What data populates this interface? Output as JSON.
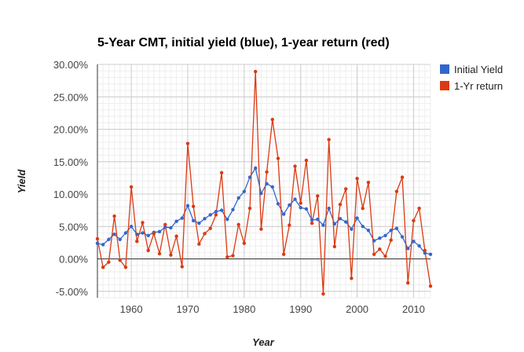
{
  "chart_data": {
    "type": "line",
    "title": "5-Year CMT, initial yield (blue), 1-year return (red)",
    "xlabel": "Year",
    "ylabel": "Yield",
    "xlim": [
      1954,
      2013
    ],
    "ylim": [
      -6,
      30
    ],
    "x_ticks": [
      1960,
      1970,
      1980,
      1990,
      2000,
      2010
    ],
    "y_ticks": [
      -5,
      0,
      5,
      10,
      15,
      20,
      25,
      30
    ],
    "y_tick_labels": [
      "-5.00%",
      "0.00%",
      "5.00%",
      "10.00%",
      "15.00%",
      "20.00%",
      "25.00%",
      "30.00%"
    ],
    "grid": true,
    "legend_position": "right",
    "x": [
      1954,
      1955,
      1956,
      1957,
      1958,
      1959,
      1960,
      1961,
      1962,
      1963,
      1964,
      1965,
      1966,
      1967,
      1968,
      1969,
      1970,
      1971,
      1972,
      1973,
      1974,
      1975,
      1976,
      1977,
      1978,
      1979,
      1980,
      1981,
      1982,
      1983,
      1984,
      1985,
      1986,
      1987,
      1988,
      1989,
      1990,
      1991,
      1992,
      1993,
      1994,
      1995,
      1996,
      1997,
      1998,
      1999,
      2000,
      2001,
      2002,
      2003,
      2004,
      2005,
      2006,
      2007,
      2008,
      2009,
      2010,
      2011,
      2012,
      2013
    ],
    "series": [
      {
        "name": "Initial Yield",
        "color": "#3366cc",
        "values": [
          2.4,
          2.2,
          3.0,
          3.8,
          3.0,
          4.0,
          5.0,
          3.8,
          4.0,
          3.6,
          4.1,
          4.2,
          4.9,
          4.8,
          5.8,
          6.3,
          8.2,
          5.9,
          5.5,
          6.2,
          6.8,
          7.3,
          7.5,
          6.1,
          7.6,
          9.4,
          10.4,
          12.6,
          14.0,
          10.1,
          11.6,
          11.1,
          8.5,
          6.9,
          8.3,
          9.2,
          7.9,
          7.7,
          6.0,
          6.1,
          5.2,
          7.8,
          5.4,
          6.2,
          5.7,
          4.6,
          6.3,
          5.0,
          4.4,
          2.8,
          3.2,
          3.6,
          4.4,
          4.7,
          3.4,
          1.6,
          2.7,
          2.0,
          0.9,
          0.7
        ]
      },
      {
        "name": "1-Yr return",
        "color": "#dc3912",
        "values": [
          3.1,
          -1.3,
          -0.5,
          6.6,
          -0.2,
          -1.3,
          11.1,
          2.7,
          5.6,
          1.3,
          3.9,
          0.8,
          5.3,
          0.6,
          3.5,
          -1.2,
          17.8,
          8.1,
          2.3,
          3.9,
          4.7,
          6.8,
          13.3,
          0.3,
          0.5,
          5.3,
          2.4,
          7.8,
          28.9,
          4.6,
          13.4,
          21.5,
          15.5,
          0.7,
          5.2,
          14.3,
          8.6,
          15.2,
          5.5,
          9.7,
          -5.4,
          18.4,
          1.9,
          8.4,
          10.8,
          -3.0,
          12.4,
          7.8,
          11.8,
          0.7,
          1.5,
          0.4,
          2.9,
          10.4,
          12.6,
          -3.7,
          5.9,
          7.8,
          1.3,
          -4.2
        ]
      }
    ]
  }
}
